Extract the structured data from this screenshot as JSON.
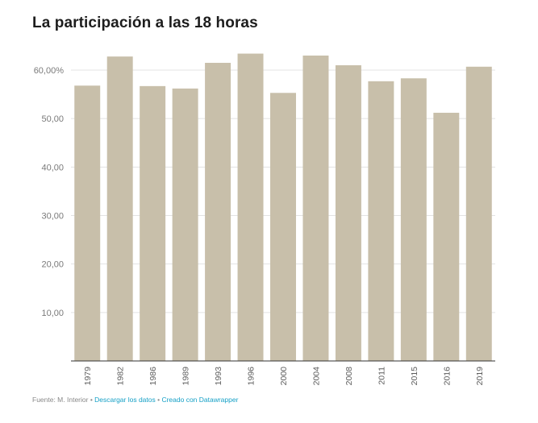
{
  "chart_data": {
    "type": "bar",
    "title": "La participación a las 18 horas",
    "categories": [
      "1979",
      "1982",
      "1986",
      "1989",
      "1993",
      "1996",
      "2000",
      "2004",
      "2008",
      "2011",
      "2015",
      "2016",
      "2019"
    ],
    "values": [
      56.8,
      62.8,
      56.7,
      56.2,
      61.5,
      63.4,
      55.3,
      63.0,
      61.0,
      57.7,
      58.3,
      51.2,
      60.7
    ],
    "ylim": [
      0,
      60
    ],
    "yticks": [
      10,
      20,
      30,
      40,
      50,
      60
    ],
    "ytick_labels": [
      "10,00",
      "20,00",
      "30,00",
      "40,00",
      "50,00",
      "60,00%"
    ],
    "grid": true,
    "bar_color": "#c8bfaa",
    "xlabel": "",
    "ylabel": ""
  },
  "footer": {
    "source": "Fuente: M. Interior",
    "separator": " • ",
    "download_link": "Descargar los datos",
    "credit_link": "Creado con Datawrapper",
    "link_color": "#15a0c6"
  }
}
